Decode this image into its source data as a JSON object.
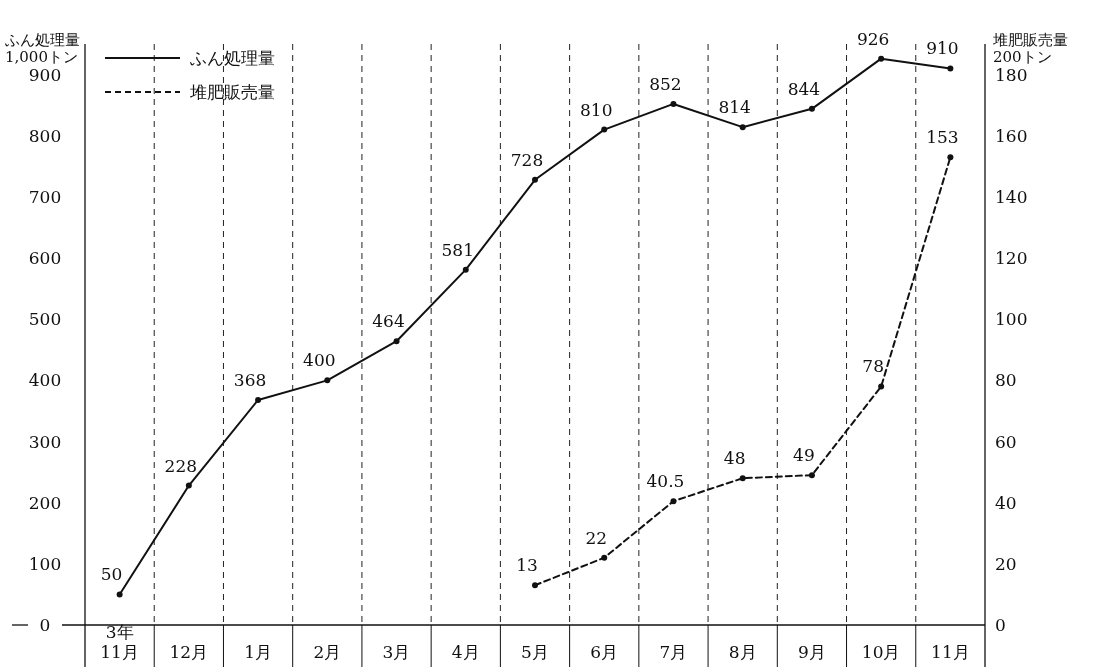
{
  "chart_data": {
    "type": "line",
    "ylabel": "ふん処理量\n1,000トン",
    "y2label": "堆肥販売量\n200トン",
    "categories": [
      "3年\n11月",
      "12月",
      "1月",
      "2月",
      "3月",
      "4月",
      "5月",
      "6月",
      "7月",
      "8月",
      "9月",
      "10月",
      "11月"
    ],
    "series": [
      {
        "name": "ふん処理量",
        "color": "#111111",
        "line_style": "solid",
        "values": [
          50,
          228,
          368,
          400,
          464,
          581,
          728,
          810,
          852,
          814,
          844,
          926,
          910
        ]
      },
      {
        "name": "堆肥販売量",
        "color": "#111111",
        "line_style": "dashed",
        "axis": "y2",
        "values": [
          null,
          null,
          null,
          null,
          null,
          null,
          13,
          22,
          40.5,
          48,
          49,
          78,
          153
        ]
      }
    ],
    "ylim": [
      0,
      950
    ],
    "yticks": [
      0,
      100,
      200,
      300,
      400,
      500,
      600,
      700,
      800,
      900
    ],
    "y2lim": [
      0,
      190
    ],
    "y2ticks": [
      0,
      20,
      40,
      60,
      80,
      100,
      120,
      140,
      160,
      180
    ],
    "grid": "x",
    "legend": "top left",
    "marker": "circle",
    "data_labels": true
  }
}
